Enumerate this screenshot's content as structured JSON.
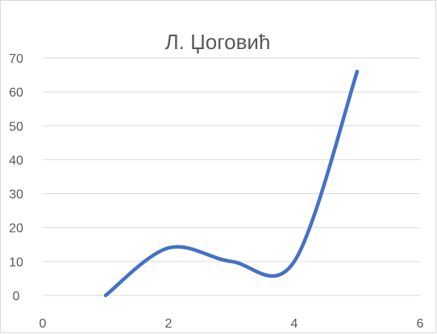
{
  "chart_data": {
    "type": "line",
    "title": "Л. Џоговић",
    "xlabel": "",
    "ylabel": "",
    "xlim": [
      0,
      6
    ],
    "ylim": [
      0,
      70
    ],
    "x_ticks": [
      0,
      2,
      4,
      6
    ],
    "y_ticks": [
      0,
      10,
      20,
      30,
      40,
      50,
      60,
      70
    ],
    "grid": "horizontal",
    "smooth": true,
    "series": [
      {
        "x": [
          1,
          2,
          3,
          4,
          5
        ],
        "y": [
          0,
          14,
          10,
          10,
          66
        ],
        "color": "#4472c4"
      }
    ]
  }
}
